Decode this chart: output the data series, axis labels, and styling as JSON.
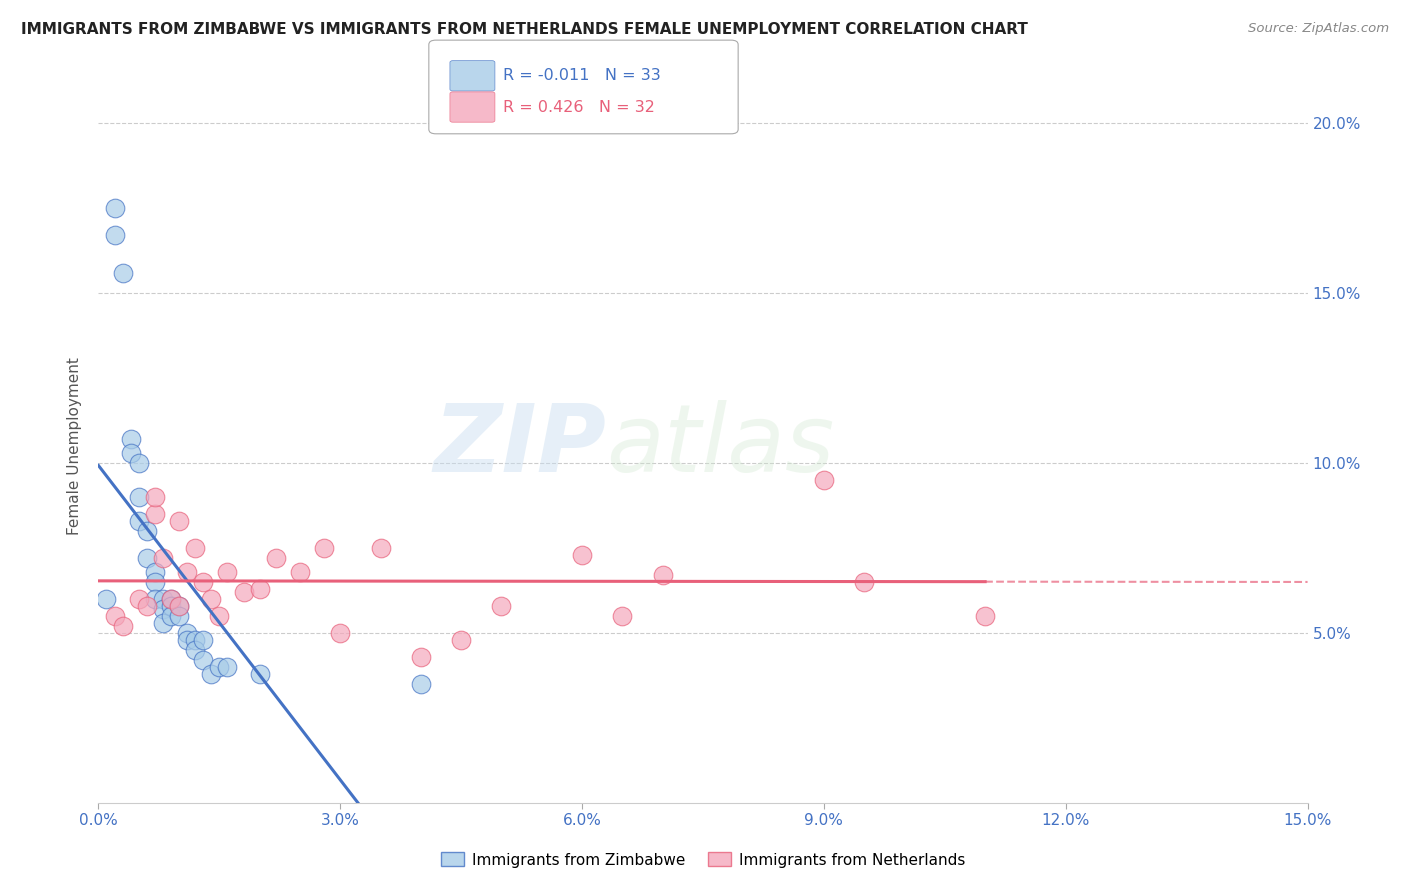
{
  "title": "IMMIGRANTS FROM ZIMBABWE VS IMMIGRANTS FROM NETHERLANDS FEMALE UNEMPLOYMENT CORRELATION CHART",
  "source": "Source: ZipAtlas.com",
  "ylabel": "Female Unemployment",
  "xlim": [
    0.0,
    0.15
  ],
  "ylim": [
    0.0,
    0.21
  ],
  "xticks": [
    0.0,
    0.03,
    0.06,
    0.09,
    0.12,
    0.15
  ],
  "yticks": [
    0.05,
    0.1,
    0.15,
    0.2
  ],
  "ytick_labels": [
    "5.0%",
    "10.0%",
    "15.0%",
    "20.0%"
  ],
  "xtick_labels": [
    "0.0%",
    "3.0%",
    "6.0%",
    "9.0%",
    "12.0%",
    "15.0%"
  ],
  "legend1_label": "Immigrants from Zimbabwe",
  "legend2_label": "Immigrants from Netherlands",
  "R1": -0.011,
  "N1": 33,
  "R2": 0.426,
  "N2": 32,
  "color_blue": "#a8cce8",
  "color_pink": "#f4a8bc",
  "color_blue_line": "#4472c4",
  "color_pink_line": "#e8607a",
  "background": "#ffffff",
  "watermark_zip": "ZIP",
  "watermark_atlas": "atlas",
  "zimbabwe_x": [
    0.001,
    0.002,
    0.002,
    0.003,
    0.004,
    0.004,
    0.005,
    0.005,
    0.005,
    0.006,
    0.006,
    0.007,
    0.007,
    0.007,
    0.008,
    0.008,
    0.008,
    0.009,
    0.009,
    0.009,
    0.01,
    0.01,
    0.011,
    0.011,
    0.012,
    0.012,
    0.013,
    0.013,
    0.014,
    0.015,
    0.016,
    0.02,
    0.04
  ],
  "zimbabwe_y": [
    0.06,
    0.175,
    0.167,
    0.156,
    0.107,
    0.103,
    0.1,
    0.09,
    0.083,
    0.08,
    0.072,
    0.068,
    0.065,
    0.06,
    0.06,
    0.057,
    0.053,
    0.06,
    0.058,
    0.055,
    0.058,
    0.055,
    0.05,
    0.048,
    0.048,
    0.045,
    0.048,
    0.042,
    0.038,
    0.04,
    0.04,
    0.038,
    0.035
  ],
  "netherlands_x": [
    0.002,
    0.003,
    0.005,
    0.006,
    0.007,
    0.007,
    0.008,
    0.009,
    0.01,
    0.01,
    0.011,
    0.012,
    0.013,
    0.014,
    0.015,
    0.016,
    0.018,
    0.02,
    0.022,
    0.025,
    0.028,
    0.03,
    0.035,
    0.04,
    0.045,
    0.05,
    0.06,
    0.065,
    0.07,
    0.09,
    0.095,
    0.11
  ],
  "netherlands_y": [
    0.055,
    0.052,
    0.06,
    0.058,
    0.085,
    0.09,
    0.072,
    0.06,
    0.058,
    0.083,
    0.068,
    0.075,
    0.065,
    0.06,
    0.055,
    0.068,
    0.062,
    0.063,
    0.072,
    0.068,
    0.075,
    0.05,
    0.075,
    0.043,
    0.048,
    0.058,
    0.073,
    0.055,
    0.067,
    0.095,
    0.065,
    0.055
  ]
}
